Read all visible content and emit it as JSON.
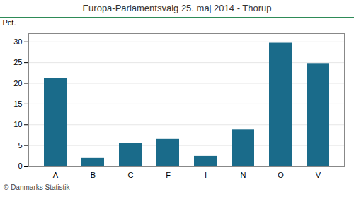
{
  "chart_data": {
    "type": "bar",
    "title": "Europa-Parlamentsvalg 25. maj 2014 - Thorup",
    "categories": [
      "A",
      "B",
      "C",
      "F",
      "I",
      "N",
      "O",
      "V"
    ],
    "values": [
      21.2,
      1.9,
      5.6,
      6.5,
      2.4,
      8.8,
      29.7,
      24.8
    ],
    "color": "#1a6b8a",
    "ylabel": "Pct.",
    "ylim": [
      0,
      32
    ],
    "yticks": [
      0,
      5,
      10,
      15,
      20,
      25,
      30
    ],
    "grid": true,
    "footer": "© Danmarks Statistik"
  }
}
